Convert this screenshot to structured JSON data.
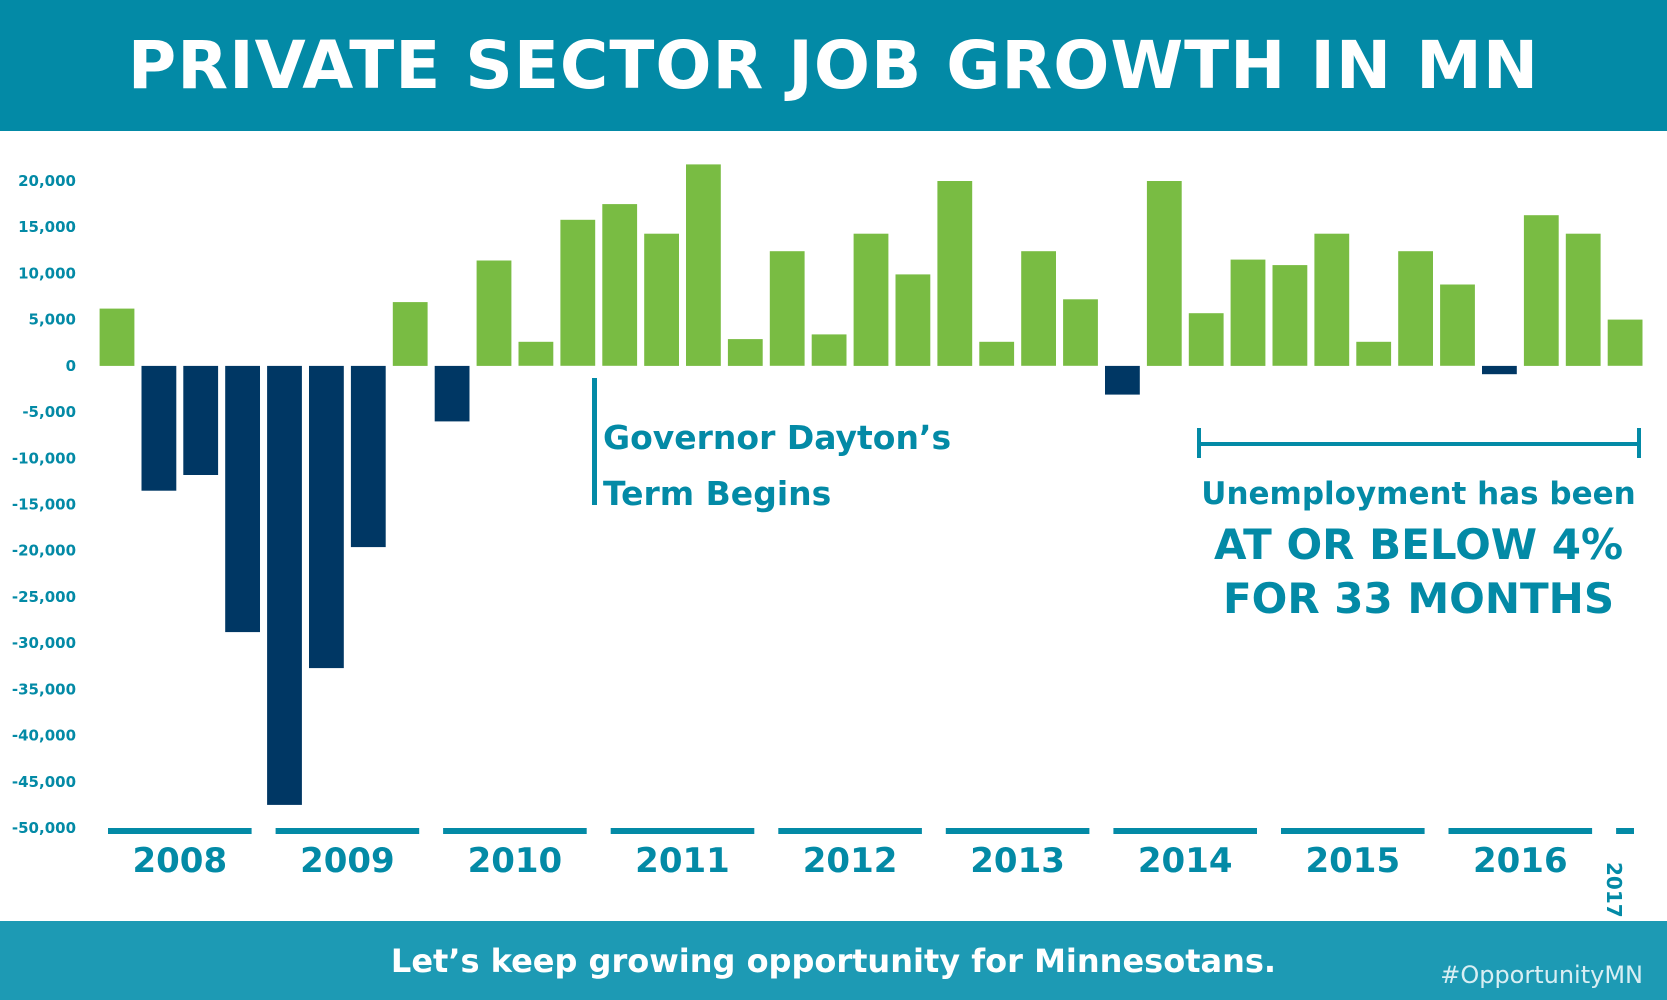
{
  "header": {
    "title": "PRIVATE SECTOR JOB GROWTH IN MN"
  },
  "annotations": {
    "dayton": [
      "Governor Dayton’s",
      "Term Begins"
    ],
    "unemployment": [
      "Unemployment has been",
      "AT OR BELOW 4%",
      "FOR 33 MONTHS"
    ]
  },
  "footer": {
    "text": "Let’s keep growing opportunity for Minnesotans.",
    "hashtag": "#OpportunityMN"
  },
  "colors": {
    "header_bg": "#038aa6",
    "footer_bg": "#1d9ab4",
    "positive": "#79bc43",
    "negative": "#003764",
    "axis": "#038aa6"
  },
  "chart_data": {
    "type": "bar",
    "title": "PRIVATE SECTOR JOB GROWTH IN MN",
    "ylim": [
      -50000,
      20000
    ],
    "yticks": [
      20000,
      15000,
      10000,
      5000,
      0,
      -5000,
      -10000,
      -15000,
      -20000,
      -25000,
      -30000,
      -35000,
      -40000,
      -45000,
      -50000
    ],
    "ytick_labels": [
      "20,000",
      "15,000",
      "10,000",
      "5,000",
      "0",
      "-5,000",
      "-10,000",
      "-15,000",
      "-20,000",
      "-25,000",
      "-30,000",
      "-35,000",
      "-40,000",
      "-45,000",
      "-50,000"
    ],
    "year_labels": [
      "2008",
      "2009",
      "2010",
      "2011",
      "2012",
      "2013",
      "2014",
      "2015",
      "2016",
      "2017"
    ],
    "year_bar_counts": [
      4,
      4,
      4,
      4,
      4,
      4,
      4,
      4,
      4,
      1
    ],
    "series": [
      {
        "values": [
          6200,
          -13500,
          -11800,
          -28800,
          -47500,
          -32700,
          -19600,
          6900,
          -6000,
          11400,
          2600,
          15800,
          17500,
          14300,
          21800,
          2900,
          12400,
          3400,
          14300,
          9900,
          20000,
          2600,
          12400,
          7200,
          -3100,
          20000,
          5700,
          11500,
          10900,
          14300,
          2600,
          12400,
          8800,
          -900,
          16300,
          14300,
          5000
        ]
      }
    ],
    "grid": false,
    "legend": "none"
  }
}
